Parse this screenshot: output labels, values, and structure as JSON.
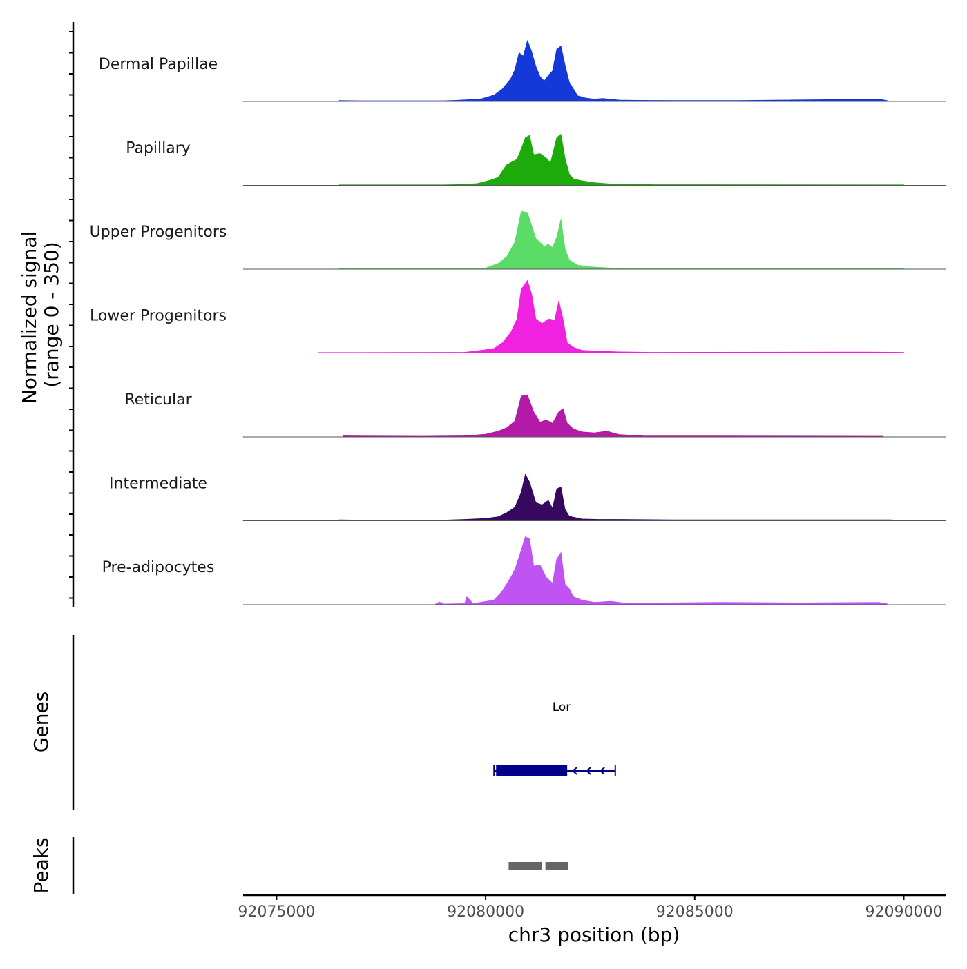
{
  "chart_data": {
    "type": "area",
    "title": "",
    "chromosome": "chr3",
    "xlabel": "chr3 position (bp)",
    "xlim": [
      92074200,
      92091000
    ],
    "xticks": [
      92075000,
      92080000,
      92085000,
      92090000
    ],
    "xtick_labels": [
      "92075000",
      "92080000",
      "92085000",
      "92090000"
    ],
    "ylabel_line1": "Normalized signal",
    "ylabel_line2": "(range 0 - 350)",
    "ylim": [
      0,
      350
    ],
    "series": [
      {
        "name": "Dermal Papillae",
        "color": "#1538D8",
        "points": [
          [
            92076500,
            4
          ],
          [
            92077000,
            3
          ],
          [
            92079000,
            3
          ],
          [
            92079300,
            5
          ],
          [
            92079600,
            8
          ],
          [
            92079900,
            12
          ],
          [
            92080200,
            28
          ],
          [
            92080400,
            55
          ],
          [
            92080600,
            100
          ],
          [
            92080700,
            140
          ],
          [
            92080800,
            215
          ],
          [
            92080900,
            200
          ],
          [
            92081000,
            268
          ],
          [
            92081100,
            220
          ],
          [
            92081200,
            155
          ],
          [
            92081300,
            110
          ],
          [
            92081400,
            90
          ],
          [
            92081500,
            115
          ],
          [
            92081600,
            135
          ],
          [
            92081700,
            230
          ],
          [
            92081800,
            245
          ],
          [
            92081900,
            160
          ],
          [
            92082000,
            85
          ],
          [
            92082100,
            55
          ],
          [
            92082200,
            25
          ],
          [
            92082400,
            15
          ],
          [
            92082600,
            10
          ],
          [
            92082800,
            13
          ],
          [
            92083200,
            6
          ],
          [
            92083600,
            5
          ],
          [
            92084500,
            4
          ],
          [
            92086000,
            4
          ],
          [
            92089400,
            10
          ],
          [
            92089600,
            4
          ]
        ]
      },
      {
        "name": "Papillary",
        "color": "#1DAA0B",
        "points": [
          [
            92076500,
            2
          ],
          [
            92079000,
            2
          ],
          [
            92079500,
            4
          ],
          [
            92079800,
            8
          ],
          [
            92080100,
            22
          ],
          [
            92080300,
            35
          ],
          [
            92080500,
            90
          ],
          [
            92080600,
            100
          ],
          [
            92080750,
            115
          ],
          [
            92080850,
            160
          ],
          [
            92080950,
            210
          ],
          [
            92081050,
            220
          ],
          [
            92081150,
            135
          ],
          [
            92081300,
            140
          ],
          [
            92081450,
            120
          ],
          [
            92081550,
            98
          ],
          [
            92081700,
            210
          ],
          [
            92081800,
            225
          ],
          [
            92081900,
            120
          ],
          [
            92082000,
            50
          ],
          [
            92082100,
            28
          ],
          [
            92082300,
            20
          ],
          [
            92082600,
            12
          ],
          [
            92083000,
            6
          ],
          [
            92084000,
            3
          ],
          [
            92090000,
            2
          ]
        ]
      },
      {
        "name": "Upper Progenitors",
        "color": "#5ADC66",
        "points": [
          [
            92076500,
            2
          ],
          [
            92079000,
            2
          ],
          [
            92080000,
            5
          ],
          [
            92080300,
            25
          ],
          [
            92080500,
            55
          ],
          [
            92080700,
            120
          ],
          [
            92080850,
            255
          ],
          [
            92081000,
            250
          ],
          [
            92081200,
            135
          ],
          [
            92081400,
            100
          ],
          [
            92081500,
            110
          ],
          [
            92081600,
            95
          ],
          [
            92081700,
            140
          ],
          [
            92081800,
            220
          ],
          [
            92081900,
            90
          ],
          [
            92082000,
            40
          ],
          [
            92082200,
            18
          ],
          [
            92082500,
            10
          ],
          [
            92083000,
            5
          ],
          [
            92084000,
            2
          ],
          [
            92090000,
            2
          ]
        ]
      },
      {
        "name": "Lower Progenitors",
        "color": "#F022DF",
        "points": [
          [
            92076000,
            2
          ],
          [
            92079500,
            3
          ],
          [
            92079900,
            12
          ],
          [
            92080200,
            20
          ],
          [
            92080400,
            45
          ],
          [
            92080600,
            90
          ],
          [
            92080750,
            150
          ],
          [
            92080850,
            280
          ],
          [
            92081000,
            320
          ],
          [
            92081100,
            260
          ],
          [
            92081200,
            150
          ],
          [
            92081350,
            130
          ],
          [
            92081500,
            150
          ],
          [
            92081650,
            145
          ],
          [
            92081750,
            230
          ],
          [
            92081850,
            150
          ],
          [
            92081950,
            45
          ],
          [
            92082100,
            25
          ],
          [
            92082300,
            12
          ],
          [
            92082700,
            8
          ],
          [
            92083200,
            5
          ],
          [
            92084000,
            3
          ],
          [
            92089000,
            4
          ],
          [
            92090000,
            3
          ]
        ]
      },
      {
        "name": "Reticular",
        "color": "#B31AA8",
        "points": [
          [
            92076600,
            5
          ],
          [
            92077000,
            4
          ],
          [
            92078500,
            3
          ],
          [
            92079500,
            5
          ],
          [
            92080000,
            12
          ],
          [
            92080300,
            25
          ],
          [
            92080500,
            40
          ],
          [
            92080700,
            70
          ],
          [
            92080850,
            180
          ],
          [
            92081000,
            185
          ],
          [
            92081150,
            110
          ],
          [
            92081300,
            65
          ],
          [
            92081450,
            75
          ],
          [
            92081600,
            60
          ],
          [
            92081750,
            110
          ],
          [
            92081850,
            125
          ],
          [
            92081950,
            60
          ],
          [
            92082100,
            35
          ],
          [
            92082300,
            22
          ],
          [
            92082600,
            18
          ],
          [
            92082900,
            25
          ],
          [
            92083200,
            10
          ],
          [
            92083800,
            4
          ],
          [
            92085500,
            4
          ],
          [
            92089500,
            3
          ]
        ]
      },
      {
        "name": "Intermediate",
        "color": "#36085F",
        "points": [
          [
            92076500,
            4
          ],
          [
            92077000,
            3
          ],
          [
            92079000,
            3
          ],
          [
            92079500,
            6
          ],
          [
            92080000,
            10
          ],
          [
            92080300,
            18
          ],
          [
            92080500,
            35
          ],
          [
            92080700,
            60
          ],
          [
            92080850,
            125
          ],
          [
            92080950,
            205
          ],
          [
            92081050,
            170
          ],
          [
            92081200,
            80
          ],
          [
            92081350,
            70
          ],
          [
            92081500,
            90
          ],
          [
            92081600,
            55
          ],
          [
            92081700,
            140
          ],
          [
            92081800,
            150
          ],
          [
            92081900,
            50
          ],
          [
            92082000,
            20
          ],
          [
            92082300,
            8
          ],
          [
            92082700,
            6
          ],
          [
            92083200,
            6
          ],
          [
            92084500,
            4
          ],
          [
            92089700,
            4
          ]
        ]
      },
      {
        "name": "Pre-adipocytes",
        "color": "#C054F2",
        "points": [
          [
            92078800,
            3
          ],
          [
            92078900,
            12
          ],
          [
            92079000,
            3
          ],
          [
            92079500,
            5
          ],
          [
            92079550,
            35
          ],
          [
            92079700,
            5
          ],
          [
            92080200,
            20
          ],
          [
            92080400,
            60
          ],
          [
            92080600,
            120
          ],
          [
            92080700,
            155
          ],
          [
            92080850,
            240
          ],
          [
            92080950,
            300
          ],
          [
            92081050,
            290
          ],
          [
            92081150,
            170
          ],
          [
            92081300,
            175
          ],
          [
            92081450,
            120
          ],
          [
            92081600,
            95
          ],
          [
            92081700,
            200
          ],
          [
            92081800,
            230
          ],
          [
            92081900,
            90
          ],
          [
            92082000,
            70
          ],
          [
            92082100,
            35
          ],
          [
            92082300,
            20
          ],
          [
            92082600,
            10
          ],
          [
            92083000,
            15
          ],
          [
            92083400,
            5
          ],
          [
            92084300,
            8
          ],
          [
            92085600,
            10
          ],
          [
            92087500,
            8
          ],
          [
            92089400,
            10
          ],
          [
            92089600,
            4
          ]
        ]
      }
    ],
    "genes": {
      "label": "Genes",
      "items": [
        {
          "name": "Lor",
          "start": 92080200,
          "end": 92083100,
          "exon_start": 92080250,
          "exon_end": 92081950,
          "strand": "-",
          "color": "#00008B"
        }
      ]
    },
    "peaks": {
      "label": "Peaks",
      "color": "#666666",
      "regions": [
        [
          92080550,
          92081350
        ],
        [
          92081430,
          92081970
        ]
      ]
    }
  }
}
